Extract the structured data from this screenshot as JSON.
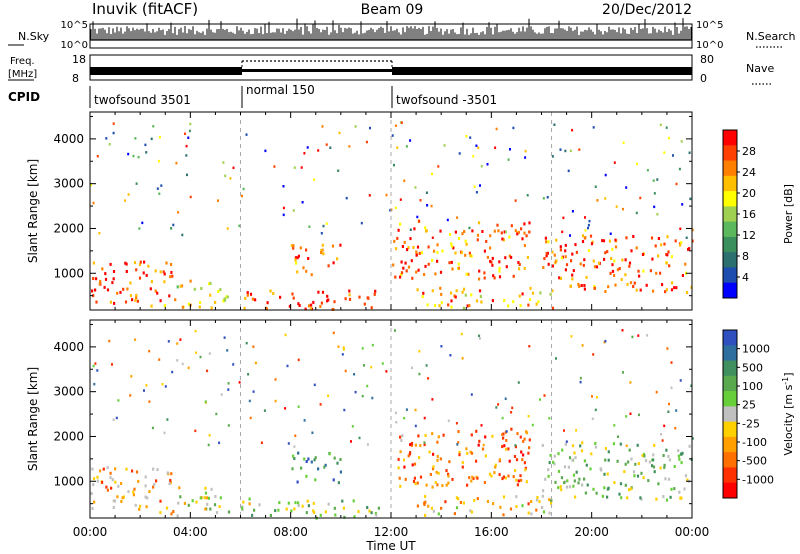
{
  "header": {
    "station": "Inuvik (fitACF)",
    "beam": "Beam 09",
    "date": "20/Dec/2012"
  },
  "summary": {
    "nsky_label": "N.Sky",
    "nsearch_label": "N.Search",
    "nsky_ticks": [
      "10^5",
      "10^0"
    ],
    "freq_label_1": "Freq.",
    "freq_label_2": "[MHz]",
    "freq_ticks": [
      "18",
      "8"
    ],
    "nave_label": "Nave",
    "nave_ticks": [
      "80",
      "0"
    ],
    "cpid_label": "CPID",
    "cpid_segments": [
      {
        "name": "twofsound 3501",
        "start_ut": 0,
        "end_ut": 6
      },
      {
        "name": "normal 150",
        "start_ut": 6,
        "end_ut": 12
      },
      {
        "name": "twofsound -3501",
        "start_ut": 12,
        "end_ut": 24
      }
    ]
  },
  "chart_data": [
    {
      "type": "heatmap",
      "title": "Power",
      "xlabel": "Time UT",
      "ylabel": "Slant Range [km]",
      "xlim": [
        0,
        24
      ],
      "ylim": [
        180,
        4600
      ],
      "xticks": [
        "00:00",
        "04:00",
        "08:00",
        "12:00",
        "16:00",
        "20:00",
        "00:00"
      ],
      "yticks": [
        1000,
        2000,
        3000,
        4000
      ],
      "colorbar": {
        "label": "Power [dB]",
        "ticks": [
          "28",
          "24",
          "20",
          "16",
          "12",
          "8",
          "4"
        ],
        "colors": [
          "#ff0000",
          "#ff4000",
          "#ff8000",
          "#ffbf00",
          "#ffff00",
          "#a0d050",
          "#5cb85c",
          "#3a8f5c",
          "#2d7070",
          "#1e4db0",
          "#0000ff"
        ]
      },
      "echo_regions": [
        {
          "t_start": 0.0,
          "t_end": 3.3,
          "range_low_km": 300,
          "range_high_km": 1350,
          "power_db": 26
        },
        {
          "t_start": 3.3,
          "t_end": 5.5,
          "range_low_km": 250,
          "range_high_km": 900,
          "power_db": 18
        },
        {
          "t_start": 6.0,
          "t_end": 11.5,
          "range_low_km": 200,
          "range_high_km": 650,
          "power_db": 26
        },
        {
          "t_start": 8.0,
          "t_end": 10.0,
          "range_low_km": 1000,
          "range_high_km": 1700,
          "power_db": 24
        },
        {
          "t_start": 12.0,
          "t_end": 17.5,
          "range_low_km": 900,
          "range_high_km": 2200,
          "power_db": 24
        },
        {
          "t_start": 13.0,
          "t_end": 18.5,
          "range_low_km": 250,
          "range_high_km": 700,
          "power_db": 22
        },
        {
          "t_start": 18.0,
          "t_end": 24.0,
          "range_low_km": 600,
          "range_high_km": 1900,
          "power_db": 25
        }
      ]
    },
    {
      "type": "heatmap",
      "title": "Velocity",
      "xlabel": "Time UT",
      "ylabel": "Slant Range [km]",
      "xlim": [
        0,
        24
      ],
      "ylim": [
        180,
        4600
      ],
      "xticks": [
        "00:00",
        "04:00",
        "08:00",
        "12:00",
        "16:00",
        "20:00",
        "00:00"
      ],
      "yticks": [
        1000,
        2000,
        3000,
        4000
      ],
      "colorbar": {
        "label": "Velocity [m s",
        "label_sup": "-1",
        "label_end": "]",
        "ticks": [
          "1000",
          "500",
          "100",
          "25",
          "-25",
          "-100",
          "-500",
          "-1000"
        ],
        "colors": [
          "#3050c0",
          "#2f6fa0",
          "#3f8f5f",
          "#5aa94f",
          "#67cf3a",
          "#c0c0c0",
          "#ffd000",
          "#ffa000",
          "#ff7000",
          "#ff3000",
          "#ff0000"
        ]
      },
      "echo_regions": [
        {
          "t_start": 0.0,
          "t_end": 3.3,
          "range_low_km": 300,
          "range_high_km": 1350,
          "velocity_ms": -200
        },
        {
          "t_start": 3.3,
          "t_end": 5.5,
          "range_low_km": 250,
          "range_high_km": 900,
          "velocity_ms": 0
        },
        {
          "t_start": 6.0,
          "t_end": 11.5,
          "range_low_km": 200,
          "range_high_km": 650,
          "velocity_ms": 80
        },
        {
          "t_start": 8.0,
          "t_end": 10.0,
          "range_low_km": 1000,
          "range_high_km": 1700,
          "velocity_ms": 300
        },
        {
          "t_start": 12.0,
          "t_end": 17.5,
          "range_low_km": 900,
          "range_high_km": 2200,
          "velocity_ms": -300
        },
        {
          "t_start": 13.0,
          "t_end": 18.5,
          "range_low_km": 250,
          "range_high_km": 700,
          "velocity_ms": -150
        },
        {
          "t_start": 18.0,
          "t_end": 24.0,
          "range_low_km": 600,
          "range_high_km": 1900,
          "velocity_ms": 120
        }
      ]
    }
  ]
}
